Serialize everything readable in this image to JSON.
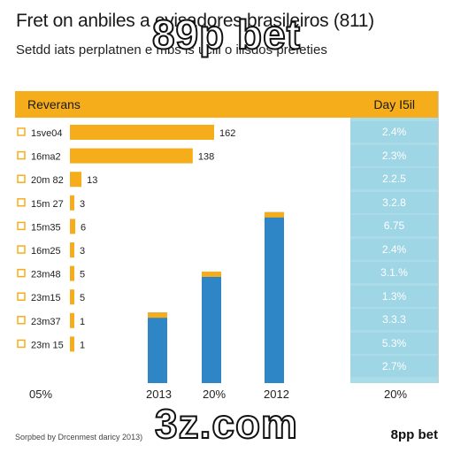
{
  "chart_data": {
    "type": "bar",
    "title": "Fret on anbiles a ovisadores brasileiros (811)",
    "subtitle": "Setdd iats perplatnen e mbs is ucili o ilisdos prefeties",
    "header_left": "Reverans",
    "header_right": "Day I5il",
    "horizontal": {
      "categories": [
        "1sve04",
        "16ma2",
        "20m 82",
        "15m 27",
        "15m35",
        "16m25",
        "23m48",
        "23m15",
        "23m37",
        "23m 15"
      ],
      "values": [
        162,
        138,
        13,
        3,
        6,
        3,
        5,
        5,
        1,
        1
      ],
      "value_labels": [
        "162",
        "138",
        "13",
        "3",
        "6",
        "3",
        "5",
        "5",
        "1",
        "1"
      ]
    },
    "vertical": {
      "categories": [
        "2013",
        "20%",
        "2012"
      ],
      "values": [
        1.9,
        3.0,
        4.6
      ]
    },
    "right_values": [
      "2.4%",
      "2.3%",
      "2.2.5",
      "3.2.8",
      "6.75",
      "2.4%",
      "3.1.%",
      "1.3%",
      "3.3.3",
      "5.3%",
      "2.7%"
    ],
    "x_tick_labels": [
      "05%",
      "2013",
      "20%",
      "2012",
      "20%"
    ],
    "colors": {
      "orange": "#f5ad1b",
      "blue": "#2f86c7",
      "teal": "#9fd6e5"
    }
  },
  "overlays": {
    "top": "89p bet",
    "bottom": "3z.com"
  },
  "source": "Sorpbed by Drcenmest daricy 2013)",
  "brand": "8pp bet"
}
